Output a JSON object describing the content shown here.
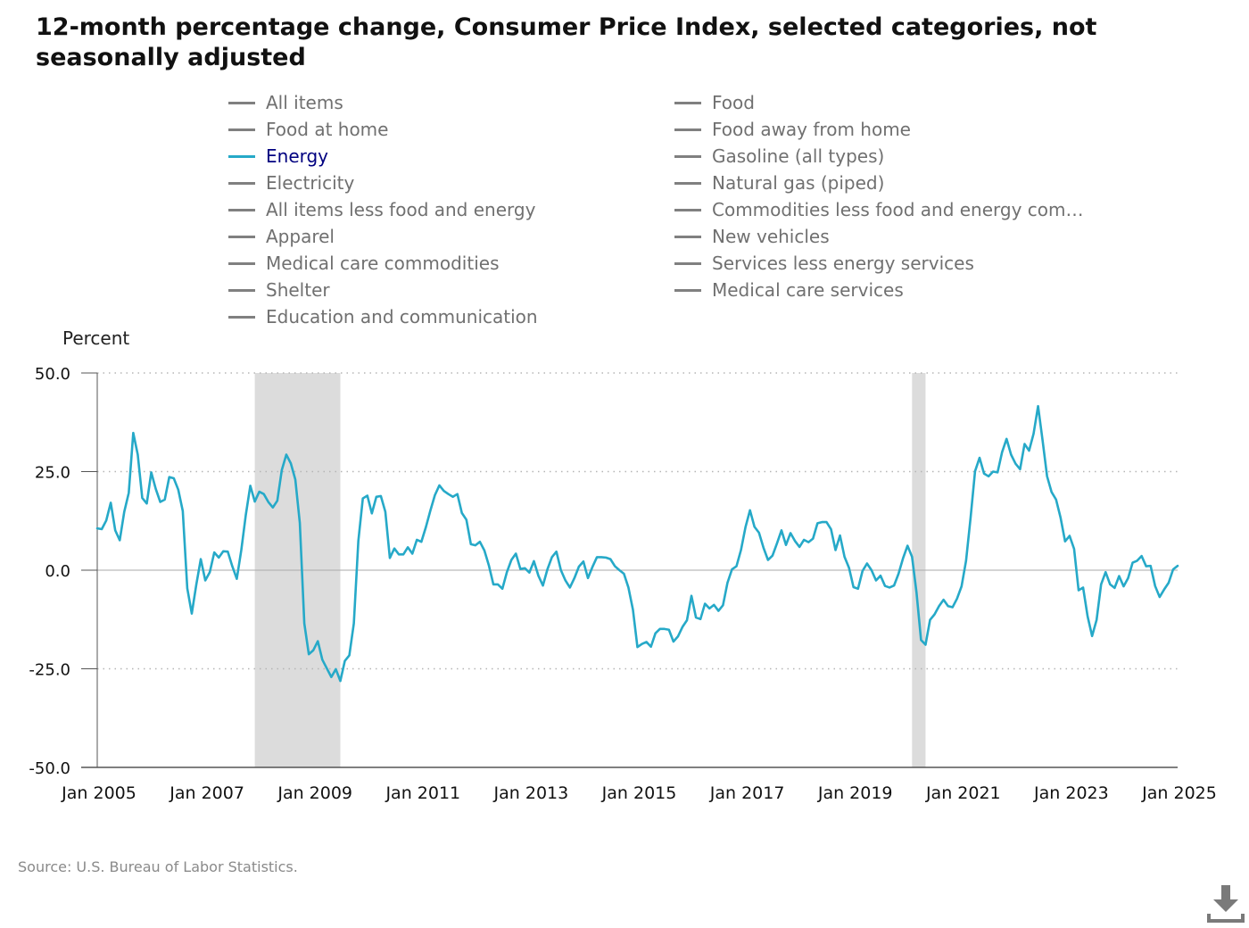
{
  "title": "12-month percentage change, Consumer Price Index, selected categories, not seasonally adjusted",
  "legend": [
    {
      "label": "All items",
      "active": false
    },
    {
      "label": "Food",
      "active": false
    },
    {
      "label": "Food at home",
      "active": false
    },
    {
      "label": "Food away from home",
      "active": false
    },
    {
      "label": "Energy",
      "active": true
    },
    {
      "label": "Gasoline (all types)",
      "active": false
    },
    {
      "label": "Electricity",
      "active": false
    },
    {
      "label": "Natural gas (piped)",
      "active": false
    },
    {
      "label": "All items less food and energy",
      "active": false
    },
    {
      "label": "Commodities less food and energy com…",
      "active": false
    },
    {
      "label": "Apparel",
      "active": false
    },
    {
      "label": "New vehicles",
      "active": false
    },
    {
      "label": "Medical care commodities",
      "active": false
    },
    {
      "label": "Services less energy services",
      "active": false
    },
    {
      "label": "Shelter",
      "active": false
    },
    {
      "label": "Medical care services",
      "active": false
    },
    {
      "label": "Education and communication",
      "active": false
    }
  ],
  "source": "Source: U.S. Bureau of Labor Statistics.",
  "download_icon": "download-icon",
  "colors": {
    "series": "#26a9c8",
    "inactive": "#808080",
    "recession": "#dcdcdc",
    "grid": "#b5b5b5",
    "zero": "#aaaaaa"
  },
  "chart_data": {
    "type": "line",
    "ylabel": "Percent",
    "ylim": [
      -50,
      50
    ],
    "yticks": [
      "50.0",
      "25.0",
      "0.0",
      "-25.0",
      "-50.0"
    ],
    "ytick_values": [
      50,
      25,
      0,
      -25,
      -50
    ],
    "xlim": [
      "2005-01",
      "2025-01"
    ],
    "xticks": [
      "Jan 2005",
      "Jan 2007",
      "Jan 2009",
      "Jan 2011",
      "Jan 2013",
      "Jan 2015",
      "Jan 2017",
      "Jan 2019",
      "Jan 2021",
      "Jan 2023",
      "Jan 2025"
    ],
    "xtick_dates": [
      "2005-01",
      "2007-01",
      "2009-01",
      "2011-01",
      "2013-01",
      "2015-01",
      "2017-01",
      "2019-01",
      "2021-01",
      "2023-01",
      "2025-01"
    ],
    "grid": "horizontal dotted",
    "legend_placement": "top",
    "recessions": [
      [
        "2007-12",
        "2009-06"
      ],
      [
        "2020-02",
        "2020-04"
      ]
    ],
    "series": [
      {
        "name": "Energy",
        "start": "2005-01",
        "values": [
          10.6,
          10.4,
          12.6,
          17.1,
          10.1,
          7.6,
          14.8,
          19.6,
          34.8,
          29.3,
          18.3,
          16.9,
          24.8,
          20.6,
          17.3,
          17.9,
          23.6,
          23.3,
          20.4,
          15.0,
          -4.6,
          -11.0,
          -3.7,
          2.8,
          -2.6,
          -0.5,
          4.5,
          3.2,
          4.8,
          4.7,
          1.0,
          -2.2,
          5.1,
          14.0,
          21.4,
          17.4,
          19.9,
          19.3,
          17.3,
          15.9,
          17.6,
          25.4,
          29.3,
          27.1,
          23.0,
          12.0,
          -13.5,
          -21.3,
          -20.3,
          -18.0,
          -22.7,
          -24.9,
          -27.1,
          -25.1,
          -28.1,
          -23.0,
          -21.6,
          -13.5,
          7.4,
          18.2,
          18.9,
          14.4,
          18.6,
          18.8,
          14.8,
          3.1,
          5.5,
          4.0,
          4.0,
          5.8,
          4.2,
          7.7,
          7.2,
          10.9,
          15.1,
          19.0,
          21.5,
          20.1,
          19.3,
          18.6,
          19.3,
          14.5,
          12.8,
          6.6,
          6.3,
          7.2,
          5.0,
          1.2,
          -3.6,
          -3.6,
          -4.7,
          -0.5,
          2.6,
          4.2,
          0.3,
          0.5,
          -0.6,
          2.3,
          -1.4,
          -3.9,
          0.2,
          3.3,
          4.7,
          0.0,
          -2.6,
          -4.4,
          -2.0,
          0.9,
          2.2,
          -2.0,
          0.8,
          3.3,
          3.3,
          3.2,
          2.8,
          1.0,
          0.0,
          -0.9,
          -4.4,
          -10.0,
          -19.5,
          -18.7,
          -18.2,
          -19.4,
          -16.0,
          -14.9,
          -14.9,
          -15.1,
          -18.1,
          -16.8,
          -14.4,
          -12.7,
          -6.5,
          -12.0,
          -12.4,
          -8.5,
          -9.7,
          -8.8,
          -10.3,
          -8.9,
          -3.2,
          0.2,
          1.0,
          5.1,
          10.9,
          15.2,
          11.0,
          9.5,
          5.7,
          2.6,
          3.7,
          6.8,
          10.1,
          6.4,
          9.4,
          7.4,
          5.9,
          7.7,
          7.1,
          8.0,
          11.9,
          12.2,
          12.2,
          10.4,
          5.1,
          8.8,
          3.4,
          0.6,
          -4.3,
          -4.7,
          -0.2,
          1.7,
          0.0,
          -2.6,
          -1.4,
          -4.0,
          -4.4,
          -3.9,
          -0.9,
          3.0,
          6.2,
          3.4,
          -5.7,
          -17.7,
          -18.9,
          -12.6,
          -11.2,
          -9.1,
          -7.5,
          -9.1,
          -9.4,
          -7.2,
          -4.1,
          2.4,
          13.2,
          25.1,
          28.5,
          24.5,
          23.8,
          25.0,
          24.8,
          29.9,
          33.3,
          29.3,
          27.0,
          25.6,
          32.0,
          30.3,
          34.6,
          41.6,
          32.9,
          23.8,
          19.8,
          17.9,
          13.3,
          7.3,
          8.7,
          5.4,
          -5.1,
          -4.4,
          -11.7,
          -16.7,
          -12.6,
          -3.6,
          -0.5,
          -3.6,
          -4.5,
          -1.5,
          -4.1,
          -2.0,
          1.9,
          2.4,
          3.6,
          1.0,
          1.1,
          -4.0,
          -6.8,
          -4.9,
          -3.2,
          0.2,
          1.1
        ]
      }
    ]
  }
}
